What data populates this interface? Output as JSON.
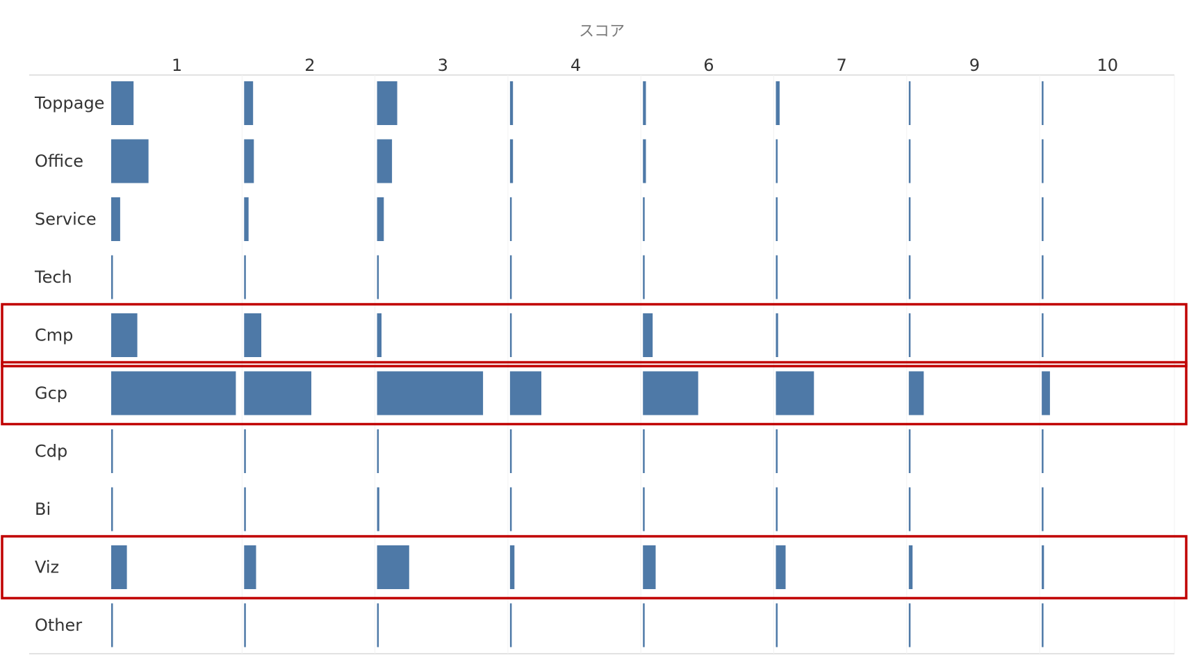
{
  "colors": {
    "bar": "#4e79a7",
    "highlight": "#c00000"
  },
  "chart_data": {
    "type": "bar",
    "orientation": "horizontal",
    "layout": "small-multiples",
    "x_axis_title": "スコア",
    "columns": [
      "1",
      "2",
      "3",
      "4",
      "6",
      "7",
      "9",
      "10"
    ],
    "rows": [
      "Toppage",
      "Office",
      "Service",
      "Tech",
      "Cmp",
      "Gcp",
      "Cdp",
      "Bi",
      "Viz",
      "Other"
    ],
    "series": [
      {
        "name": "Toppage",
        "values": [
          30,
          12,
          27,
          4,
          4,
          5,
          2,
          2
        ]
      },
      {
        "name": "Office",
        "values": [
          50,
          13,
          20,
          4,
          4,
          2,
          2,
          2
        ]
      },
      {
        "name": "Service",
        "values": [
          12,
          6,
          9,
          2,
          2,
          2,
          2,
          2
        ]
      },
      {
        "name": "Tech",
        "values": [
          1,
          1,
          1,
          1,
          1,
          1,
          1,
          1
        ]
      },
      {
        "name": "Cmp",
        "values": [
          35,
          23,
          6,
          2,
          13,
          3,
          2,
          2
        ]
      },
      {
        "name": "Gcp",
        "values": [
          167,
          90,
          142,
          42,
          74,
          51,
          20,
          11
        ]
      },
      {
        "name": "Cdp",
        "values": [
          1,
          1,
          1,
          1,
          1,
          1,
          1,
          1
        ]
      },
      {
        "name": "Bi",
        "values": [
          2,
          1,
          3,
          1,
          1,
          1,
          1,
          1
        ]
      },
      {
        "name": "Viz",
        "values": [
          21,
          16,
          43,
          6,
          17,
          13,
          5,
          3
        ]
      },
      {
        "name": "Other",
        "values": [
          1,
          1,
          1,
          1,
          1,
          1,
          1,
          1
        ]
      }
    ],
    "column_value_max": 175,
    "highlighted_rows": [
      "Cmp",
      "Gcp",
      "Viz"
    ]
  }
}
